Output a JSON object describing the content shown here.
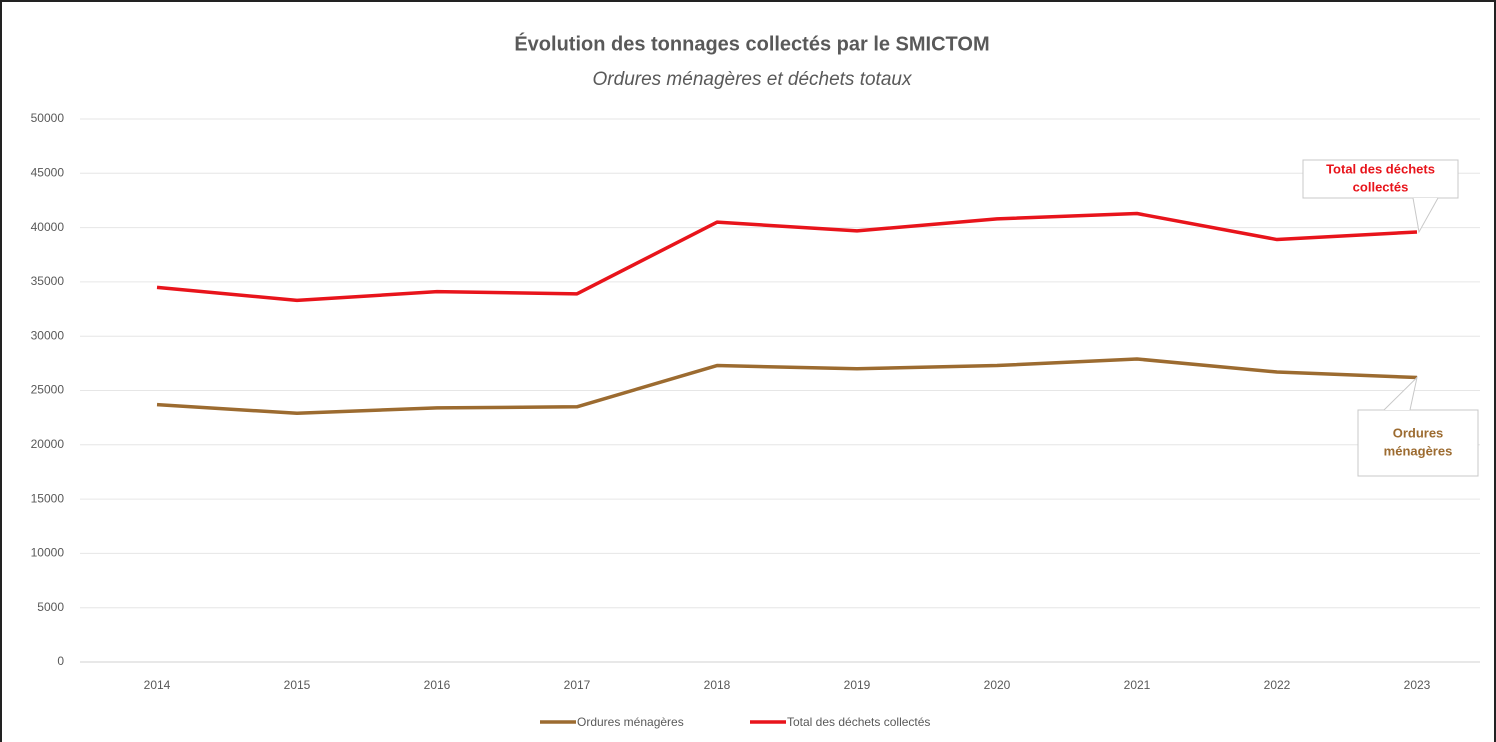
{
  "chart_data": {
    "type": "line",
    "title": "Évolution des tonnages collectés par le SMICTOM",
    "subtitle": "Ordures ménagères et déchets totaux",
    "categories": [
      "2014",
      "2015",
      "2016",
      "2017",
      "2018",
      "2019",
      "2020",
      "2021",
      "2022",
      "2023"
    ],
    "series": [
      {
        "name": "Ordures ménagères",
        "color": "#9c6b30",
        "values": [
          23700,
          22900,
          23400,
          23500,
          27300,
          27000,
          27300,
          27900,
          26700,
          26200
        ]
      },
      {
        "name": "Total des déchets collectés",
        "color": "#e8141b",
        "values": [
          34500,
          33300,
          34100,
          33900,
          40500,
          39700,
          40800,
          41300,
          38900,
          39600
        ]
      }
    ],
    "ylim": [
      0,
      50000
    ],
    "yticks": [
      0,
      5000,
      10000,
      15000,
      20000,
      25000,
      30000,
      35000,
      40000,
      45000,
      50000
    ],
    "grid": true,
    "legend": "bottom",
    "annotations": [
      {
        "lines": [
          "Total des déchets",
          "collectés"
        ],
        "color": "#e8141b"
      },
      {
        "lines": [
          "Ordures",
          "ménagères"
        ],
        "color": "#9c6b30"
      }
    ]
  }
}
